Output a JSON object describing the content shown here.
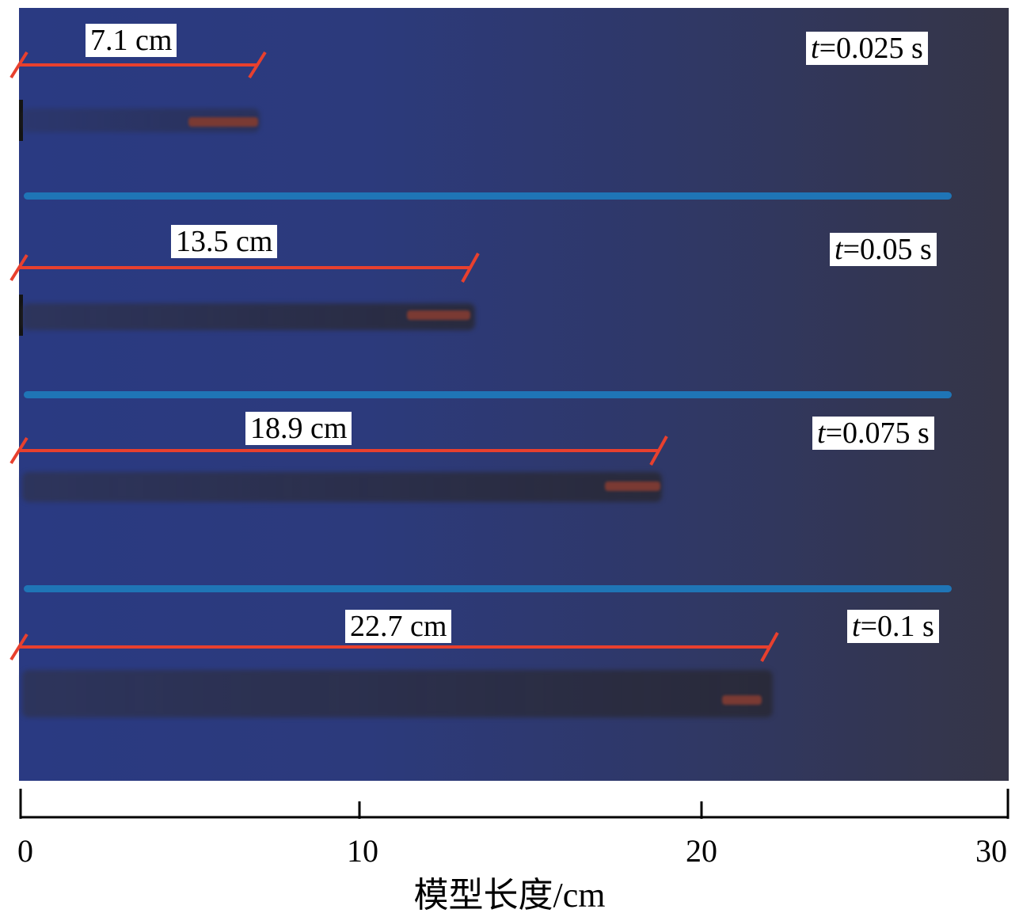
{
  "panels": [
    {
      "time_var": "t",
      "time_value": "=0.025 s",
      "distance_label": "7.1 cm",
      "distance_cm": 7.1
    },
    {
      "time_var": "t",
      "time_value": "=0.05 s",
      "distance_label": "13.5 cm",
      "distance_cm": 13.5
    },
    {
      "time_var": "t",
      "time_value": "=0.075 s",
      "distance_label": "18.9 cm",
      "distance_cm": 18.9
    },
    {
      "time_var": "t",
      "time_value": "=0.1 s",
      "distance_label": "22.7 cm",
      "distance_cm": 22.7
    }
  ],
  "axis": {
    "ticks": [
      "0",
      "10",
      "20",
      "30"
    ],
    "title": "模型长度/cm"
  },
  "colors": {
    "background": "#2c3a7c",
    "separator": "#1f75b6",
    "measure_line": "#e8402e"
  }
}
